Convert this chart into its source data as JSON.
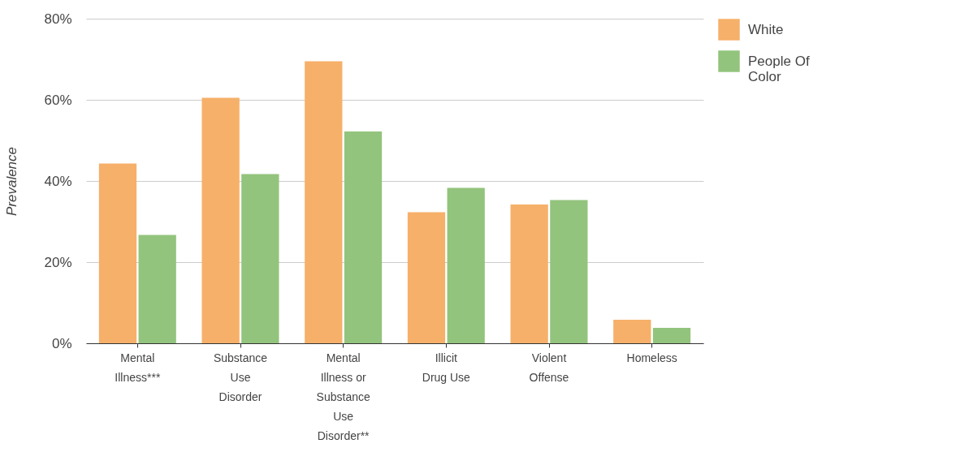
{
  "chart_data": {
    "type": "bar",
    "ylabel": "Prevalence",
    "categories": [
      "Mental Illness***",
      "Substance Use Disorder",
      "Mental Illness or Substance Use Disorder**",
      "Illicit Drug Use",
      "Violent Offense",
      "Homeless"
    ],
    "series": [
      {
        "name": "White",
        "color": "#f6b069",
        "values": [
          44.3,
          60.5,
          69.5,
          32.3,
          34.2,
          5.8
        ]
      },
      {
        "name": "People Of Color",
        "color": "#93c47d",
        "values": [
          26.7,
          41.7,
          52.2,
          38.3,
          35.3,
          3.8
        ]
      }
    ],
    "ylim": [
      0,
      80
    ],
    "yticks": [
      {
        "value": 0,
        "label": "0%"
      },
      {
        "value": 20,
        "label": "20%"
      },
      {
        "value": 40,
        "label": "40%"
      },
      {
        "value": 60,
        "label": "60%"
      },
      {
        "value": 80,
        "label": "80%"
      }
    ],
    "grid": "y",
    "legend": "top right"
  }
}
